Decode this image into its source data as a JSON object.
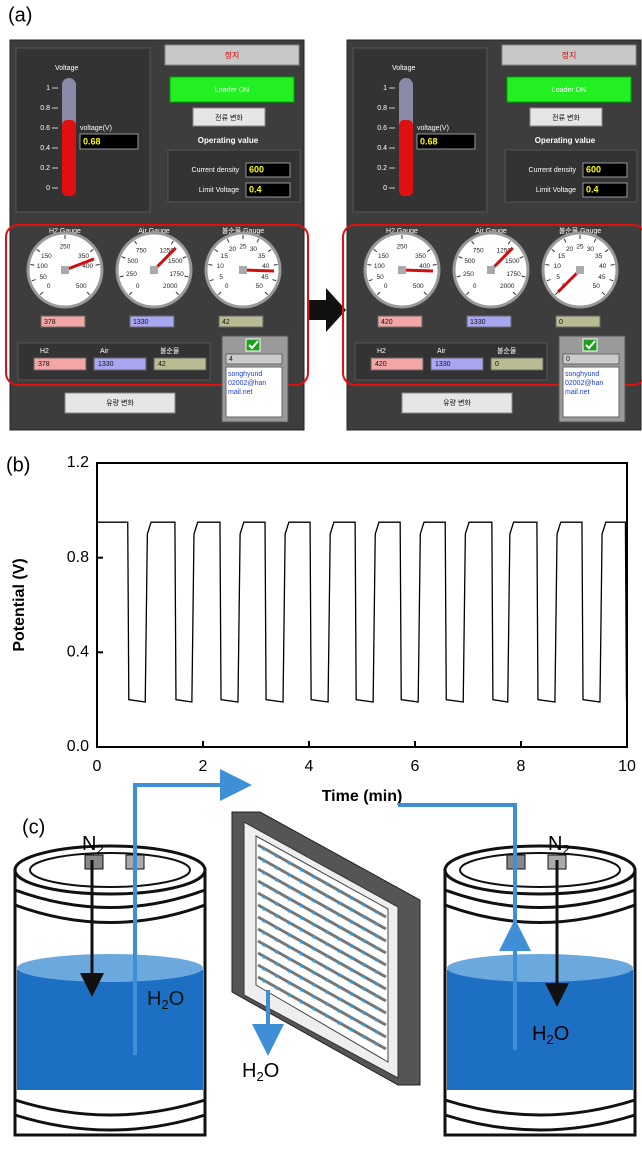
{
  "panel_labels": [
    "(a)",
    "(b)",
    "(c)"
  ],
  "panel_a": {
    "screens": [
      {
        "stop_button": "정지",
        "loader_status": "Loader ON",
        "current_change_button": "전류 변화",
        "operating_value_title": "Operating value",
        "voltage_title": "Voltage",
        "voltage_label": "voltage(V)",
        "voltage": 0.68,
        "voltage_scale": {
          "lim": [
            0,
            1
          ],
          "ticks": [
            0,
            0.2,
            0.4,
            0.6,
            0.8,
            1
          ]
        },
        "current_density_label": "Current density",
        "current_density": 600,
        "limit_voltage_label": "Limit Voltage",
        "limit_voltage": 0.4,
        "gauges": [
          {
            "title": "H2 Gauge",
            "input_label": "H2",
            "lim": [
              0,
              500
            ],
            "ticks": [
              0,
              50,
              100,
              150,
              250,
              350,
              400,
              500
            ],
            "value": 378,
            "color": "#f4a6a6"
          },
          {
            "title": "Air Gauge",
            "input_label": "Air",
            "lim": [
              0,
              2000
            ],
            "ticks": [
              0,
              250,
              500,
              750,
              1250,
              1500,
              1750,
              2000
            ],
            "value": 1330,
            "color": "#a9a6f4"
          },
          {
            "title": "불순물 Gauge",
            "input_label": "불순물",
            "lim": [
              0,
              50
            ],
            "ticks": [
              0,
              5,
              10,
              15,
              20,
              25,
              30,
              35,
              40,
              45,
              50
            ],
            "value": 42,
            "color": "#b9bb92"
          }
        ],
        "counter": 4,
        "email_lines": [
          "songhyund",
          "02002@han",
          "mail.net"
        ],
        "flow_change_button": "유량 변화"
      },
      {
        "stop_button": "정지",
        "loader_status": "Loader ON",
        "current_change_button": "전류 변화",
        "operating_value_title": "Operating value",
        "voltage_title": "Voltage",
        "voltage_label": "voltage(V)",
        "voltage": 0.68,
        "voltage_scale": {
          "lim": [
            0,
            1
          ],
          "ticks": [
            0,
            0.2,
            0.4,
            0.6,
            0.8,
            1
          ]
        },
        "current_density_label": "Current density",
        "current_density": 600,
        "limit_voltage_label": "Limit Voltage",
        "limit_voltage": 0.4,
        "gauges": [
          {
            "title": "H2 Gauge",
            "input_label": "H2",
            "lim": [
              0,
              500
            ],
            "ticks": [
              0,
              50,
              100,
              150,
              250,
              350,
              400,
              500
            ],
            "value": 420,
            "color": "#f4a6a6"
          },
          {
            "title": "Air Gauge",
            "input_label": "Air",
            "lim": [
              0,
              2000
            ],
            "ticks": [
              0,
              250,
              500,
              750,
              1250,
              1500,
              1750,
              2000
            ],
            "value": 1330,
            "color": "#a9a6f4"
          },
          {
            "title": "불순물 Gauge",
            "input_label": "불순물",
            "lim": [
              0,
              50
            ],
            "ticks": [
              0,
              5,
              10,
              15,
              20,
              25,
              30,
              35,
              40,
              45,
              50
            ],
            "value": 0,
            "color": "#b9bb92"
          }
        ],
        "counter": 0,
        "email_lines": [
          "songhyund",
          "02002@han",
          "mail.net"
        ],
        "flow_change_button": "유량 변화"
      }
    ]
  },
  "chart_data": {
    "type": "line",
    "x_label": "Time (min)",
    "y_label": "Potential (V)",
    "color": "#000000",
    "x": [
      0,
      0.58,
      0.6,
      0.91,
      0.95,
      1.02,
      1.47,
      1.49,
      1.79,
      1.83,
      1.9,
      2.32,
      2.34,
      2.66,
      2.7,
      2.77,
      3.17,
      3.19,
      3.51,
      3.55,
      3.62,
      4.02,
      4.04,
      4.36,
      4.4,
      4.47,
      4.87,
      4.89,
      5.21,
      5.25,
      5.32,
      5.72,
      5.74,
      6.06,
      6.1,
      6.17,
      6.57,
      6.59,
      6.91,
      6.95,
      7.02,
      7.45,
      7.47,
      7.75,
      7.79,
      7.86,
      8.3,
      8.32,
      8.64,
      8.68,
      8.75,
      9.15,
      9.17,
      9.49,
      9.53,
      9.6,
      9.97,
      9.99
    ],
    "values": [
      0.95,
      0.95,
      0.2,
      0.19,
      0.9,
      0.95,
      0.95,
      0.2,
      0.19,
      0.9,
      0.95,
      0.95,
      0.2,
      0.19,
      0.9,
      0.95,
      0.95,
      0.2,
      0.19,
      0.9,
      0.95,
      0.95,
      0.2,
      0.19,
      0.9,
      0.95,
      0.95,
      0.2,
      0.19,
      0.9,
      0.95,
      0.95,
      0.2,
      0.19,
      0.9,
      0.95,
      0.95,
      0.2,
      0.19,
      0.9,
      0.95,
      0.95,
      0.2,
      0.19,
      0.9,
      0.95,
      0.95,
      0.2,
      0.19,
      0.9,
      0.95,
      0.95,
      0.2,
      0.19,
      0.9,
      0.95,
      0.95,
      0.2
    ],
    "xlim": [
      0,
      10
    ],
    "xticks": [
      0,
      2,
      4,
      6,
      8,
      10
    ],
    "ylim": [
      0,
      1.2
    ],
    "yticks": [
      {
        "value": 0,
        "label": "0.0"
      },
      0.4,
      0.8,
      1.2
    ]
  },
  "panel_c": {
    "n2_left": [
      "N",
      "2"
    ],
    "n2_right": [
      "N",
      "2"
    ],
    "h2o_left": [
      "H",
      "2",
      "O"
    ],
    "h2o_center": [
      "H",
      "2",
      "O"
    ],
    "h2o_right": [
      "H",
      "2",
      "O"
    ]
  }
}
